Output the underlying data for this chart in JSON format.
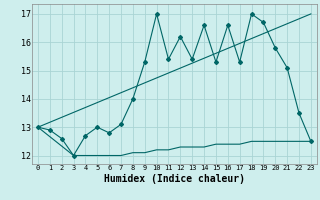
{
  "xlabel": "Humidex (Indice chaleur)",
  "xlim": [
    -0.5,
    23.5
  ],
  "ylim": [
    11.7,
    17.35
  ],
  "yticks": [
    12,
    13,
    14,
    15,
    16,
    17
  ],
  "xticks": [
    0,
    1,
    2,
    3,
    4,
    5,
    6,
    7,
    8,
    9,
    10,
    11,
    12,
    13,
    14,
    15,
    16,
    17,
    18,
    19,
    20,
    21,
    22,
    23
  ],
  "bg_color": "#ceeeed",
  "grid_color": "#aad4d4",
  "line_color": "#006666",
  "line1_x": [
    0,
    1,
    2,
    3,
    4,
    5,
    6,
    7,
    8,
    9,
    10,
    11,
    12,
    13,
    14,
    15,
    16,
    17,
    18,
    19,
    20,
    21,
    22,
    23
  ],
  "line1_y": [
    13.0,
    12.9,
    12.6,
    12.0,
    12.7,
    13.0,
    12.8,
    13.1,
    14.0,
    15.3,
    17.0,
    15.4,
    16.2,
    15.4,
    16.6,
    15.3,
    16.6,
    15.3,
    17.0,
    16.7,
    15.8,
    15.1,
    13.5,
    12.5
  ],
  "line2_x": [
    0,
    23
  ],
  "line2_y": [
    13.0,
    17.0
  ],
  "line3_x": [
    0,
    3,
    4,
    5,
    6,
    7,
    8,
    9,
    10,
    11,
    12,
    13,
    14,
    15,
    16,
    17,
    18,
    19,
    20,
    21,
    22,
    23
  ],
  "line3_y": [
    13.0,
    12.0,
    12.0,
    12.0,
    12.0,
    12.0,
    12.1,
    12.1,
    12.2,
    12.2,
    12.3,
    12.3,
    12.3,
    12.4,
    12.4,
    12.4,
    12.5,
    12.5,
    12.5,
    12.5,
    12.5,
    12.5
  ]
}
